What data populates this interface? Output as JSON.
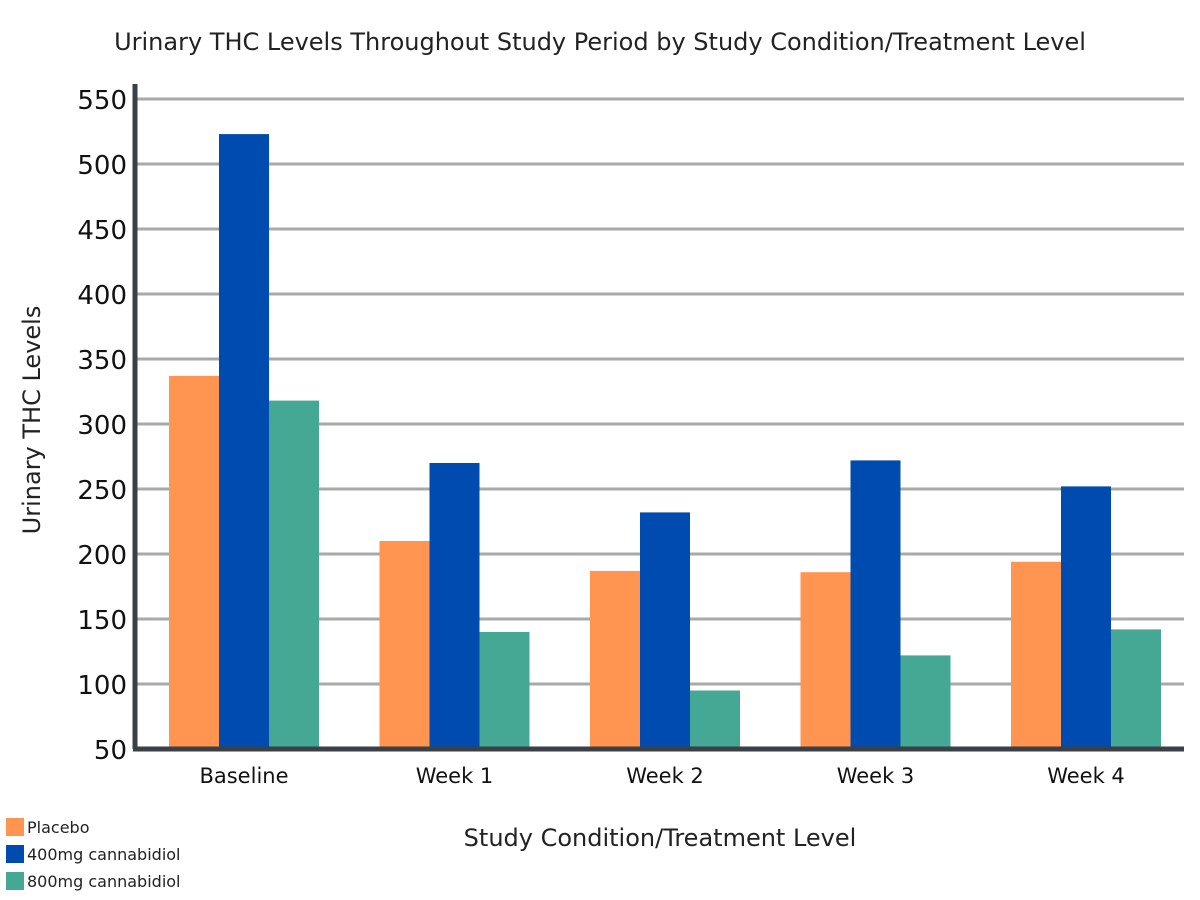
{
  "chart_data": {
    "type": "bar",
    "title": "Urinary THC Levels Throughout Study Period by Study Condition/Treatment Level",
    "xlabel": "Study Condition/Treatment Level",
    "ylabel": "Urinary THC Levels",
    "ylim": [
      50,
      550
    ],
    "yticks": [
      50,
      100,
      150,
      200,
      250,
      300,
      350,
      400,
      450,
      500,
      550
    ],
    "grid": true,
    "legend_position": "bottom-left",
    "categories": [
      "Baseline",
      "Week 1",
      "Week 2",
      "Week 3",
      "Week 4"
    ],
    "series": [
      {
        "name": "Placebo",
        "color": "#FF9550",
        "values": [
          337,
          210,
          187,
          186,
          194
        ]
      },
      {
        "name": "400mg cannabidiol",
        "color": "#004BAF",
        "values": [
          523,
          270,
          232,
          272,
          252
        ]
      },
      {
        "name": "800mg cannabidiol",
        "color": "#45A894",
        "values": [
          318,
          140,
          95,
          122,
          142
        ]
      }
    ]
  }
}
